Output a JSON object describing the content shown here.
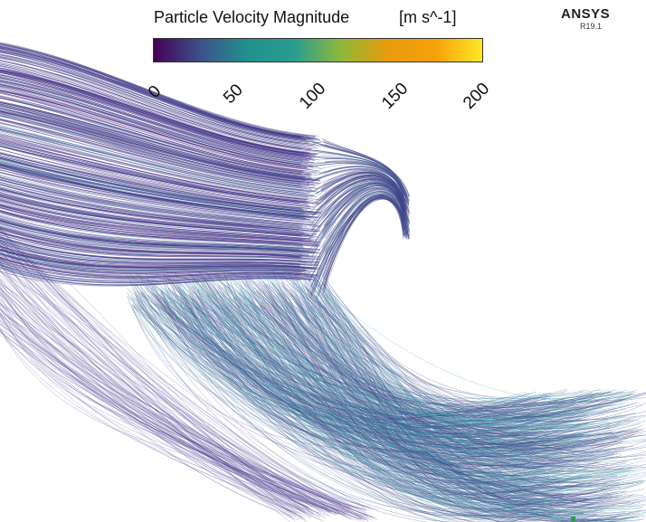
{
  "legend": {
    "title": "Particle Velocity Magnitude",
    "units": "[m s^-1]",
    "ticks": [
      "0",
      "50",
      "100",
      "150",
      "200"
    ],
    "range": [
      0,
      200
    ],
    "colormap_stops": [
      "#440154",
      "#3b528b",
      "#21918c",
      "#2a9d8f",
      "#8fb83a",
      "#e89b0c",
      "#f7a10a",
      "#fde725"
    ]
  },
  "branding": {
    "product": "ANSYS",
    "release": "R19.1"
  },
  "colors": {
    "background": "#ffffff",
    "low_velocity": "#46267e",
    "mid_velocity": "#2fb3b0",
    "pathline_blue": "#3f5ba8"
  }
}
